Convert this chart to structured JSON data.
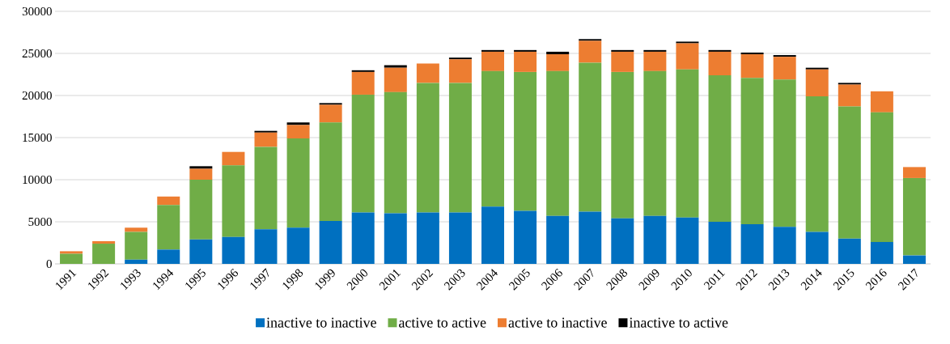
{
  "chart_data": {
    "type": "bar",
    "stacked": true,
    "categories": [
      "1991",
      "1992",
      "1993",
      "1994",
      "1995",
      "1996",
      "1997",
      "1998",
      "1999",
      "2000",
      "2001",
      "2002",
      "2003",
      "2004",
      "2005",
      "2006",
      "2007",
      "2008",
      "2009",
      "2010",
      "2011",
      "2012",
      "2013",
      "2014",
      "2015",
      "2016",
      "2017"
    ],
    "series": [
      {
        "name": "inactive to inactive",
        "color": "#0070c0",
        "values": [
          0,
          0,
          500,
          1700,
          2900,
          3200,
          4100,
          4300,
          5100,
          6100,
          6000,
          6100,
          6100,
          6800,
          6300,
          5700,
          6200,
          5400,
          5700,
          5500,
          5000,
          4700,
          4400,
          3800,
          3000,
          2600,
          1000
        ]
      },
      {
        "name": "active to active",
        "color": "#70ad47",
        "values": [
          1200,
          2400,
          3300,
          5300,
          7100,
          8500,
          9800,
          10600,
          11700,
          14000,
          14400,
          15400,
          15400,
          16100,
          16500,
          17200,
          17700,
          17400,
          17200,
          17600,
          17400,
          17400,
          17500,
          16100,
          15700,
          15400,
          9200
        ]
      },
      {
        "name": "active to inactive",
        "color": "#ed7d31",
        "values": [
          300,
          300,
          500,
          1000,
          1300,
          1600,
          1700,
          1600,
          2100,
          2700,
          2900,
          2300,
          2800,
          2300,
          2400,
          2000,
          2600,
          2400,
          2300,
          3100,
          2800,
          2800,
          2700,
          3200,
          2600,
          2500,
          1300
        ]
      },
      {
        "name": "inactive to active",
        "color": "#000000",
        "values": [
          0,
          0,
          0,
          0,
          300,
          0,
          200,
          300,
          200,
          200,
          300,
          0,
          200,
          200,
          200,
          300,
          200,
          200,
          200,
          200,
          200,
          200,
          200,
          200,
          200,
          0,
          0
        ]
      }
    ],
    "ylim": [
      0,
      30000
    ],
    "yticks": [
      0,
      5000,
      10000,
      15000,
      20000,
      25000,
      30000
    ],
    "grid": "y",
    "legend": "bottom"
  }
}
